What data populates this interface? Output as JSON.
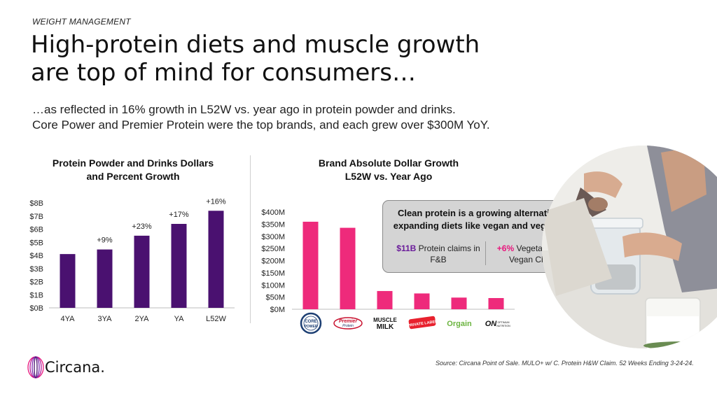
{
  "header": {
    "eyebrow": "WEIGHT MANAGEMENT",
    "headline_line1": "High-protein diets and muscle growth",
    "headline_line2": "are top of mind for consumers…",
    "sub_line1": "…as reflected in 16% growth in L52W vs. year ago in protein powder and drinks.",
    "sub_line2": "Core Power and Premier Protein were the top brands, and each grew over $300M YoY."
  },
  "chart_data": [
    {
      "type": "bar",
      "title_line1": "Protein Powder and Drinks Dollars",
      "title_line2": "and Percent Growth",
      "categories": [
        "4YA",
        "3YA",
        "2YA",
        "YA",
        "L52W"
      ],
      "values": [
        4.1,
        4.45,
        5.5,
        6.4,
        7.4
      ],
      "data_labels": [
        "",
        "+9%",
        "+23%",
        "+17%",
        "+16%"
      ],
      "yticks": [
        "$0B",
        "$1B",
        "$2B",
        "$3B",
        "$4B",
        "$5B",
        "$6B",
        "$7B",
        "$8B"
      ],
      "ylim": [
        0,
        8
      ],
      "color": "#4a1170"
    },
    {
      "type": "bar",
      "title_line1": "Brand Absolute Dollar Growth",
      "title_line2": "L52W vs. Year Ago",
      "categories": [
        "Core Power",
        "Premier Protein",
        "Muscle Milk",
        "Private Label",
        "Orgain",
        "Optimum Nutrition"
      ],
      "values": [
        360,
        335,
        75,
        65,
        48,
        46
      ],
      "yticks": [
        "$0M",
        "$50M",
        "$100M",
        "$150M",
        "$200M",
        "$250M",
        "$300M",
        "$350M",
        "$400M"
      ],
      "ylim": [
        0,
        400
      ],
      "color": "#ee2a7b"
    }
  ],
  "brands": {
    "core1": "CORE",
    "core2": "POWER",
    "premier1": "Premier",
    "premier2": "Protein",
    "muscle1": "MUSCLE",
    "muscle2": "MILK",
    "private": "PRIVATE LABEL",
    "orgain": "Orgain",
    "on_mark": "ON",
    "on_sub1": "OPTIMUM",
    "on_sub2": "NUTRITION"
  },
  "callout": {
    "headline": "Clean protein is a growing alternative for expanding diets like vegan and vegetarian.",
    "stat1_value": "$11B",
    "stat1_text": " Protein claims in F&B",
    "stat2_value": "+6%",
    "stat2_text": " Vegetarian and Vegan Claims"
  },
  "footer": {
    "source": "Source: Circana Point of Sale. MULO+ w/ C. Protein H&W Claim. 52 Weeks Ending 3-24-24.",
    "logo_text": "Circana."
  },
  "colors": {
    "purple": "#4a1170",
    "pink": "#ee2a7b",
    "callout_bg": "#d4d4d4"
  }
}
